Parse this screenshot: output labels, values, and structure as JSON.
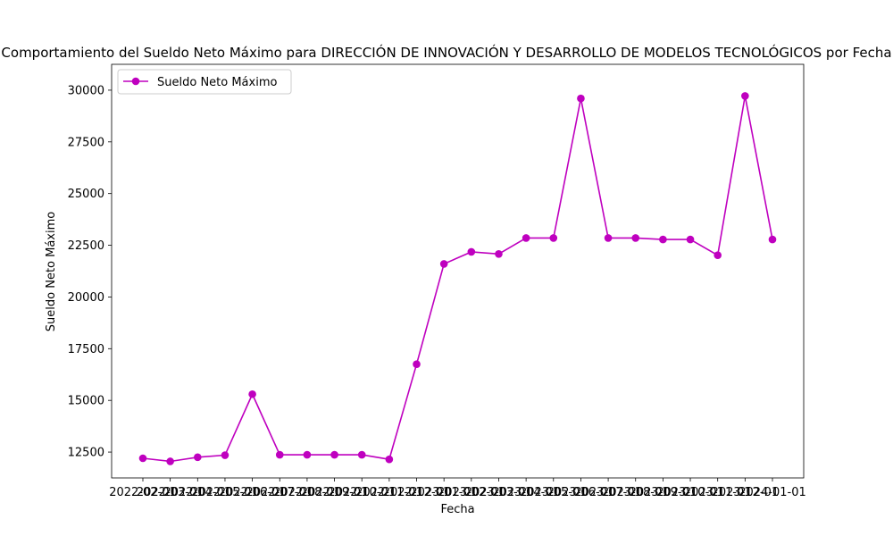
{
  "chart_data": {
    "type": "line",
    "title": "Comportamiento del Sueldo Neto Máximo para DIRECCIÓN DE INNOVACIÓN Y DESARROLLO DE MODELOS TECNOLÓGICOS por Fecha",
    "xlabel": "Fecha",
    "ylabel": "Sueldo Neto Máximo",
    "ylim": [
      11250,
      31250
    ],
    "yticks": [
      12500,
      15000,
      17500,
      20000,
      22500,
      25000,
      27500,
      30000
    ],
    "grid": false,
    "legend_position": "top-left",
    "x": [
      "2022-02-01",
      "2022-03-01",
      "2022-04-01",
      "2022-05-01",
      "2022-06-01",
      "2022-07-01",
      "2022-08-01",
      "2022-09-01",
      "2022-10-01",
      "2022-11-01",
      "2022-12-01",
      "2023-01-01",
      "2023-02-01",
      "2023-03-01",
      "2023-04-01",
      "2023-05-01",
      "2023-06-01",
      "2023-07-01",
      "2023-08-01",
      "2023-09-01",
      "2023-10-01",
      "2023-11-01",
      "2023-12-01",
      "2024-01-01"
    ],
    "series": [
      {
        "name": "Sueldo Neto Máximo",
        "color": "#bf00bf",
        "marker": "circle",
        "values": [
          12200,
          12050,
          12250,
          12350,
          15300,
          12370,
          12370,
          12370,
          12370,
          12150,
          16750,
          21600,
          22180,
          22080,
          22850,
          22850,
          29600,
          22850,
          22850,
          22780,
          22780,
          22020,
          29720,
          22780
        ]
      }
    ]
  }
}
